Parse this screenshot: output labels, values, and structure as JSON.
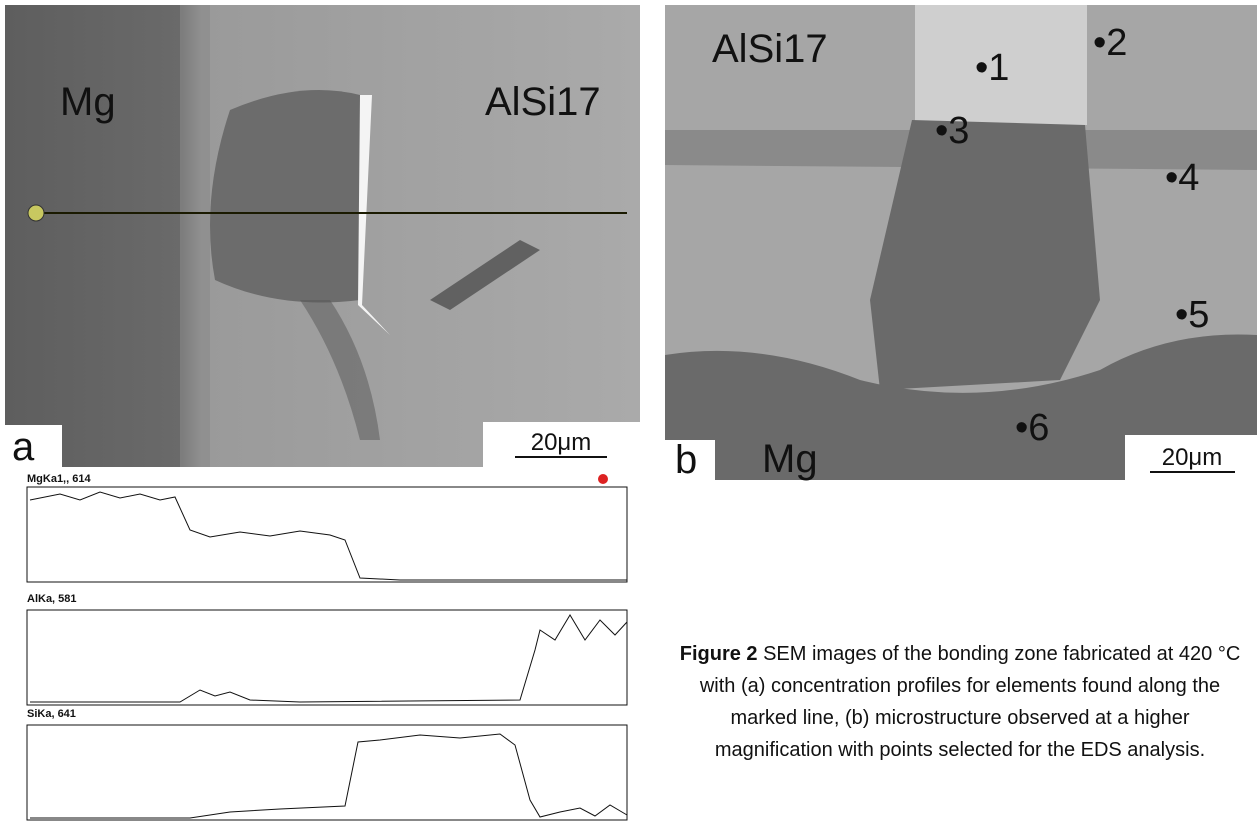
{
  "panel_a": {
    "label": "a",
    "left_label": "Mg",
    "right_label": "AlSi17",
    "scale_bar": "20μm"
  },
  "panel_b": {
    "label": "b",
    "top_label": "AlSi17",
    "bottom_label": "Mg",
    "scale_bar": "20μm",
    "points": [
      "•1",
      "•2",
      "•3",
      "•4",
      "•5",
      "•6"
    ]
  },
  "profiles": [
    {
      "label": "MgKa1,, 614"
    },
    {
      "label": "AlKa, 581"
    },
    {
      "label": "SiKa, 641"
    }
  ],
  "caption": {
    "lead": "Figure 2",
    "text": " SEM images of the bonding zone fabricated at 420 °C with (a) concentration profiles for elements found along the marked line, (b) microstructure observed at a higher magnification with points selected for the EDS analysis."
  }
}
